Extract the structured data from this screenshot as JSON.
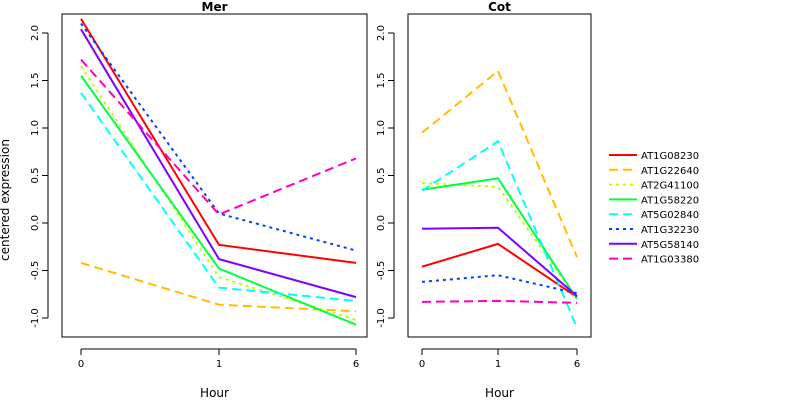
{
  "chart_data": [
    {
      "type": "line",
      "title": "Mer",
      "xlabel": "Hour",
      "ylabel": "centered expression",
      "categories": [
        "0",
        "1",
        "6"
      ],
      "ylim": [
        -1.2,
        2.2
      ],
      "yticks": [
        -1.0,
        -0.5,
        0.0,
        0.5,
        1.0,
        1.5,
        2.0
      ],
      "ytick_labels": [
        "-1.0",
        "-0.5",
        "0.0",
        "0.5",
        "1.0",
        "1.5",
        "2.0"
      ],
      "series": [
        {
          "name": "AT1G08230",
          "values": [
            2.15,
            -0.23,
            -0.42
          ]
        },
        {
          "name": "AT1G22640",
          "values": [
            -0.42,
            -0.86,
            -0.93
          ]
        },
        {
          "name": "AT2G41100",
          "values": [
            1.65,
            -0.57,
            -1.02
          ]
        },
        {
          "name": "AT1G58220",
          "values": [
            1.55,
            -0.48,
            -1.07
          ]
        },
        {
          "name": "AT5G02840",
          "values": [
            1.37,
            -0.68,
            -0.82
          ]
        },
        {
          "name": "AT1G32230",
          "values": [
            2.1,
            0.1,
            -0.29
          ]
        },
        {
          "name": "AT5G58140",
          "values": [
            2.04,
            -0.38,
            -0.78
          ]
        },
        {
          "name": "AT1G03380",
          "values": [
            1.72,
            0.09,
            0.68
          ]
        }
      ]
    },
    {
      "type": "line",
      "title": "Cot",
      "xlabel": "Hour",
      "categories": [
        "0",
        "1",
        "6"
      ],
      "ylim": [
        -1.2,
        2.2
      ],
      "yticks": [
        -1.0,
        -0.5,
        0.0,
        0.5,
        1.0,
        1.5,
        2.0
      ],
      "ytick_labels": [
        "-1.0",
        "-0.5",
        "0.0",
        "0.5",
        "1.0",
        "1.5",
        "2.0"
      ],
      "series": [
        {
          "name": "AT1G08230",
          "values": [
            -0.46,
            -0.22,
            -0.78
          ]
        },
        {
          "name": "AT1G22640",
          "values": [
            0.95,
            1.6,
            -0.36
          ]
        },
        {
          "name": "AT2G41100",
          "values": [
            0.42,
            0.38,
            -0.8
          ]
        },
        {
          "name": "AT1G58220",
          "values": [
            0.35,
            0.47,
            -0.8
          ]
        },
        {
          "name": "AT5G02840",
          "values": [
            0.34,
            0.86,
            -1.1
          ]
        },
        {
          "name": "AT1G32230",
          "values": [
            -0.62,
            -0.55,
            -0.74
          ]
        },
        {
          "name": "AT5G58140",
          "values": [
            -0.06,
            -0.05,
            -0.77
          ]
        },
        {
          "name": "AT1G03380",
          "values": [
            -0.83,
            -0.82,
            -0.84
          ]
        }
      ]
    }
  ],
  "legend": {
    "placement": "right",
    "entries": [
      {
        "name": "AT1G08230",
        "color": "#ff0000",
        "dash": "solid"
      },
      {
        "name": "AT1G22640",
        "color": "#ffbe00",
        "dash": "dashed"
      },
      {
        "name": "AT2G41100",
        "color": "#beff00",
        "dash": "dotted"
      },
      {
        "name": "AT1G58220",
        "color": "#00ff41",
        "dash": "solid"
      },
      {
        "name": "AT5G02840",
        "color": "#00ffff",
        "dash": "dashed"
      },
      {
        "name": "AT1G32230",
        "color": "#0041ff",
        "dash": "dotted"
      },
      {
        "name": "AT5G58140",
        "color": "#7f00ff",
        "dash": "solid"
      },
      {
        "name": "AT1G03380",
        "color": "#ff00be",
        "dash": "dashed"
      }
    ]
  }
}
